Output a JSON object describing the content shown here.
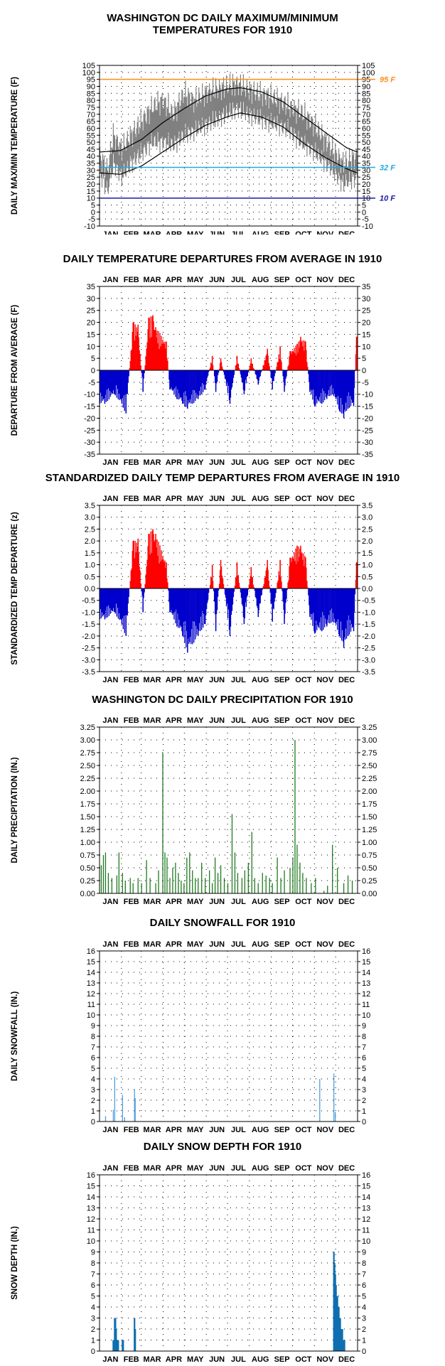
{
  "colors": {
    "max_series": "#808080",
    "min_series": "#909090",
    "normal_line": "#000000",
    "hot_line": "#ff8c1a",
    "freezing_line": "#22a9e0",
    "cold_line": "#1a1aa8",
    "positive_bars": "#ff0000",
    "negative_bars": "#0000cc",
    "precip": "#1f7a1f",
    "snowfall": "#4d9fe0",
    "snow_depth": "#0f6fb0"
  },
  "months": [
    "JAN",
    "FEB",
    "MAR",
    "APR",
    "MAY",
    "JUN",
    "JUL",
    "AUG",
    "SEP",
    "OCT",
    "NOV",
    "DEC"
  ],
  "charts": {
    "temps": {
      "title_line1": "WASHINGTON DC DAILY MAXIMUM/MINIMUM",
      "title_line2": "TEMPERATURES FOR 1910",
      "ylabel": "DAILY MAX/MIN TEMPERATURE (F)",
      "ref_labels": [
        "95 F",
        "32 F",
        "10 F"
      ]
    },
    "departures": {
      "title": "DAILY TEMPERATURE DEPARTURES FROM AVERAGE IN 1910",
      "ylabel": "DEPARTURE FROM AVERAGE (F)"
    },
    "standardized": {
      "title": "STANDARDIZED DAILY TEMP DEPARTURES FROM AVERAGE IN 1910",
      "ylabel": "STANDARDIZED TEMP DEPARTURE (z)"
    },
    "precip": {
      "title": "WASHINGTON DC DAILY PRECIPITATION FOR 1910",
      "ylabel": "DAILY PRECIPITATION (IN.)"
    },
    "snowfall": {
      "title": "DAILY SNOWFALL FOR 1910",
      "ylabel": "DAILY SNOWFALL (IN.)"
    },
    "snowdepth": {
      "title": "DAILY SNOW DEPTH FOR 1910",
      "ylabel": "SNOW DEPTH (IN.)"
    }
  },
  "chart_data": [
    {
      "id": "temps",
      "type": "line",
      "ylim": [
        -10,
        105
      ],
      "yticks": [
        -10,
        -5,
        0,
        5,
        10,
        15,
        20,
        25,
        30,
        35,
        40,
        45,
        50,
        55,
        60,
        65,
        70,
        75,
        80,
        85,
        90,
        95,
        100,
        105
      ],
      "grid": true,
      "reference_lines": [
        {
          "value": 95,
          "label": "95 F"
        },
        {
          "value": 32,
          "label": "32 F"
        },
        {
          "value": 10,
          "label": "10 F"
        }
      ],
      "series": [
        {
          "name": "daily max",
          "role": "max",
          "anchors": [
            [
              1,
              40
            ],
            [
              12,
              30
            ],
            [
              20,
              55
            ],
            [
              32,
              45
            ],
            [
              45,
              55
            ],
            [
              60,
              65
            ],
            [
              75,
              75
            ],
            [
              90,
              80
            ],
            [
              105,
              70
            ],
            [
              120,
              85
            ],
            [
              135,
              80
            ],
            [
              150,
              85
            ],
            [
              165,
              88
            ],
            [
              180,
              90
            ],
            [
              195,
              92
            ],
            [
              210,
              88
            ],
            [
              225,
              85
            ],
            [
              240,
              83
            ],
            [
              255,
              80
            ],
            [
              270,
              75
            ],
            [
              285,
              72
            ],
            [
              300,
              65
            ],
            [
              315,
              55
            ],
            [
              330,
              45
            ],
            [
              345,
              35
            ],
            [
              365,
              40
            ]
          ]
        },
        {
          "name": "daily min",
          "role": "min",
          "anchors": [
            [
              1,
              28
            ],
            [
              12,
              15
            ],
            [
              20,
              35
            ],
            [
              32,
              25
            ],
            [
              45,
              35
            ],
            [
              60,
              42
            ],
            [
              75,
              50
            ],
            [
              90,
              50
            ],
            [
              105,
              48
            ],
            [
              120,
              55
            ],
            [
              135,
              58
            ],
            [
              150,
              62
            ],
            [
              165,
              66
            ],
            [
              180,
              70
            ],
            [
              195,
              74
            ],
            [
              210,
              70
            ],
            [
              225,
              67
            ],
            [
              240,
              64
            ],
            [
              255,
              62
            ],
            [
              270,
              58
            ],
            [
              285,
              50
            ],
            [
              300,
              45
            ],
            [
              315,
              38
            ],
            [
              330,
              30
            ],
            [
              345,
              20
            ],
            [
              365,
              25
            ]
          ]
        },
        {
          "name": "normal max",
          "role": "normal_max",
          "anchors": [
            [
              1,
              43
            ],
            [
              30,
              44
            ],
            [
              60,
              52
            ],
            [
              90,
              64
            ],
            [
              120,
              74
            ],
            [
              150,
              83
            ],
            [
              180,
              88
            ],
            [
              200,
              89
            ],
            [
              230,
              86
            ],
            [
              260,
              79
            ],
            [
              290,
              68
            ],
            [
              320,
              57
            ],
            [
              350,
              46
            ],
            [
              365,
              43
            ]
          ]
        },
        {
          "name": "normal min",
          "role": "normal_min",
          "anchors": [
            [
              1,
              28
            ],
            [
              30,
              27
            ],
            [
              60,
              33
            ],
            [
              90,
              43
            ],
            [
              120,
              53
            ],
            [
              150,
              62
            ],
            [
              180,
              68
            ],
            [
              200,
              71
            ],
            [
              230,
              68
            ],
            [
              260,
              61
            ],
            [
              290,
              49
            ],
            [
              320,
              39
            ],
            [
              350,
              31
            ],
            [
              365,
              28
            ]
          ]
        }
      ]
    },
    {
      "id": "departures",
      "type": "bar",
      "ylim": [
        -35,
        35
      ],
      "yticks": [
        -35,
        -30,
        -25,
        -20,
        -15,
        -10,
        -5,
        0,
        5,
        10,
        15,
        20,
        25,
        30,
        35
      ],
      "grid": true,
      "peaks": [
        [
          8,
          -14
        ],
        [
          22,
          -10
        ],
        [
          38,
          -18
        ],
        [
          48,
          20
        ],
        [
          55,
          19
        ],
        [
          62,
          -9
        ],
        [
          70,
          22
        ],
        [
          76,
          23
        ],
        [
          80,
          18
        ],
        [
          95,
          12
        ],
        [
          100,
          -8
        ],
        [
          110,
          -12
        ],
        [
          118,
          -14
        ],
        [
          125,
          -16
        ],
        [
          140,
          -12
        ],
        [
          150,
          -8
        ],
        [
          160,
          6
        ],
        [
          165,
          -9
        ],
        [
          172,
          5
        ],
        [
          185,
          -14
        ],
        [
          195,
          6
        ],
        [
          205,
          -10
        ],
        [
          215,
          5
        ],
        [
          225,
          -6
        ],
        [
          238,
          9
        ],
        [
          245,
          -8
        ],
        [
          256,
          10
        ],
        [
          262,
          -9
        ],
        [
          270,
          8
        ],
        [
          280,
          11
        ],
        [
          285,
          14
        ],
        [
          292,
          12
        ],
        [
          298,
          -9
        ],
        [
          305,
          -15
        ],
        [
          315,
          -14
        ],
        [
          322,
          -12
        ],
        [
          330,
          -10
        ],
        [
          340,
          -17
        ],
        [
          346,
          -20
        ],
        [
          352,
          -16
        ],
        [
          360,
          -15
        ],
        [
          364,
          14
        ]
      ]
    },
    {
      "id": "standardized",
      "type": "bar",
      "ylim": [
        -3.5,
        3.5
      ],
      "yticks": [
        -3.5,
        -3.0,
        -2.5,
        -2.0,
        -1.5,
        -1.0,
        -0.5,
        0.0,
        0.5,
        1.0,
        1.5,
        2.0,
        2.5,
        3.0,
        3.5
      ],
      "grid": true,
      "peaks": [
        [
          8,
          -1.3
        ],
        [
          22,
          -1.0
        ],
        [
          38,
          -2.0
        ],
        [
          48,
          2.0
        ],
        [
          55,
          2.1
        ],
        [
          62,
          -1.0
        ],
        [
          70,
          2.3
        ],
        [
          76,
          2.5
        ],
        [
          80,
          2.3
        ],
        [
          95,
          1.1
        ],
        [
          100,
          -1.0
        ],
        [
          110,
          -1.6
        ],
        [
          118,
          -2.0
        ],
        [
          125,
          -2.7
        ],
        [
          140,
          -2.0
        ],
        [
          150,
          -1.5
        ],
        [
          160,
          1.0
        ],
        [
          165,
          -1.8
        ],
        [
          172,
          1.2
        ],
        [
          185,
          -2.0
        ],
        [
          195,
          1.1
        ],
        [
          205,
          -1.5
        ],
        [
          215,
          0.9
        ],
        [
          225,
          -1.2
        ],
        [
          238,
          1.2
        ],
        [
          245,
          -1.4
        ],
        [
          256,
          1.2
        ],
        [
          262,
          -1.5
        ],
        [
          270,
          1.3
        ],
        [
          280,
          1.8
        ],
        [
          285,
          1.8
        ],
        [
          292,
          1.3
        ],
        [
          298,
          -1.2
        ],
        [
          305,
          -1.9
        ],
        [
          315,
          -1.8
        ],
        [
          322,
          -1.6
        ],
        [
          330,
          -1.4
        ],
        [
          340,
          -2.0
        ],
        [
          346,
          -2.5
        ],
        [
          352,
          -2.0
        ],
        [
          360,
          -1.8
        ],
        [
          364,
          1.1
        ]
      ]
    },
    {
      "id": "precip",
      "type": "bar",
      "ylim": [
        0,
        3.25
      ],
      "yticks": [
        0.0,
        0.25,
        0.5,
        0.75,
        1.0,
        1.25,
        1.5,
        1.75,
        2.0,
        2.25,
        2.5,
        2.75,
        3.0,
        3.25
      ],
      "grid": true,
      "bars": [
        [
          3,
          0.55
        ],
        [
          6,
          0.75
        ],
        [
          9,
          0.8
        ],
        [
          13,
          0.4
        ],
        [
          18,
          0.3
        ],
        [
          25,
          0.35
        ],
        [
          28,
          0.8
        ],
        [
          33,
          0.4
        ],
        [
          37,
          0.25
        ],
        [
          44,
          0.3
        ],
        [
          48,
          0.2
        ],
        [
          55,
          0.3
        ],
        [
          60,
          0.2
        ],
        [
          67,
          0.65
        ],
        [
          72,
          0.3
        ],
        [
          80,
          0.2
        ],
        [
          84,
          0.45
        ],
        [
          90,
          2.75
        ],
        [
          93,
          0.8
        ],
        [
          96,
          0.7
        ],
        [
          100,
          0.3
        ],
        [
          104,
          0.5
        ],
        [
          108,
          0.6
        ],
        [
          112,
          0.4
        ],
        [
          116,
          0.25
        ],
        [
          120,
          0.2
        ],
        [
          124,
          0.7
        ],
        [
          128,
          0.8
        ],
        [
          132,
          0.45
        ],
        [
          136,
          0.3
        ],
        [
          140,
          0.3
        ],
        [
          145,
          0.6
        ],
        [
          150,
          0.3
        ],
        [
          156,
          0.45
        ],
        [
          160,
          0.2
        ],
        [
          164,
          0.7
        ],
        [
          168,
          0.4
        ],
        [
          172,
          0.55
        ],
        [
          177,
          0.3
        ],
        [
          182,
          0.2
        ],
        [
          188,
          1.55
        ],
        [
          192,
          0.8
        ],
        [
          196,
          0.4
        ],
        [
          202,
          0.3
        ],
        [
          206,
          0.45
        ],
        [
          211,
          0.6
        ],
        [
          216,
          1.2
        ],
        [
          220,
          0.3
        ],
        [
          225,
          0.2
        ],
        [
          231,
          0.4
        ],
        [
          236,
          0.35
        ],
        [
          241,
          0.3
        ],
        [
          245,
          0.2
        ],
        [
          252,
          0.7
        ],
        [
          257,
          0.3
        ],
        [
          262,
          0.45
        ],
        [
          270,
          0.5
        ],
        [
          274,
          0.7
        ],
        [
          277,
          3.0
        ],
        [
          280,
          0.95
        ],
        [
          284,
          0.6
        ],
        [
          288,
          0.4
        ],
        [
          293,
          0.3
        ],
        [
          300,
          0.2
        ],
        [
          306,
          0.3
        ],
        [
          318,
          0.05
        ],
        [
          323,
          0.15
        ],
        [
          330,
          0.95
        ],
        [
          337,
          0.5
        ],
        [
          346,
          0.2
        ],
        [
          352,
          0.35
        ],
        [
          358,
          0.25
        ]
      ]
    },
    {
      "id": "snowfall",
      "type": "bar",
      "ylim": [
        0,
        16
      ],
      "yticks": [
        0,
        1,
        2,
        3,
        4,
        5,
        6,
        7,
        8,
        9,
        10,
        11,
        12,
        13,
        14,
        15,
        16
      ],
      "grid": true,
      "bars": [
        [
          9,
          0.5
        ],
        [
          20,
          1.1
        ],
        [
          22,
          4.2
        ],
        [
          33,
          2.5
        ],
        [
          36,
          0.4
        ],
        [
          50,
          3.0
        ],
        [
          51,
          2.2
        ],
        [
          312,
          4.0
        ],
        [
          332,
          4.5
        ],
        [
          334,
          0.9
        ]
      ]
    },
    {
      "id": "snowdepth",
      "type": "bar",
      "ylim": [
        0,
        16
      ],
      "yticks": [
        0,
        1,
        2,
        3,
        4,
        5,
        6,
        7,
        8,
        9,
        10,
        11,
        12,
        13,
        14,
        15,
        16
      ],
      "grid": true,
      "bars": [
        [
          20,
          1
        ],
        [
          21,
          1
        ],
        [
          22,
          3
        ],
        [
          23,
          3
        ],
        [
          24,
          2
        ],
        [
          25,
          1
        ],
        [
          26,
          1
        ],
        [
          27,
          1
        ],
        [
          33,
          1
        ],
        [
          34,
          1
        ],
        [
          50,
          3
        ],
        [
          51,
          2
        ],
        [
          332,
          9
        ],
        [
          333,
          8
        ],
        [
          334,
          7
        ],
        [
          335,
          6
        ],
        [
          336,
          5
        ],
        [
          337,
          5
        ],
        [
          338,
          4
        ],
        [
          339,
          4
        ],
        [
          340,
          3
        ],
        [
          341,
          3
        ],
        [
          342,
          2
        ],
        [
          343,
          2
        ],
        [
          344,
          2
        ],
        [
          345,
          1
        ],
        [
          346,
          1
        ],
        [
          347,
          1
        ]
      ]
    }
  ]
}
